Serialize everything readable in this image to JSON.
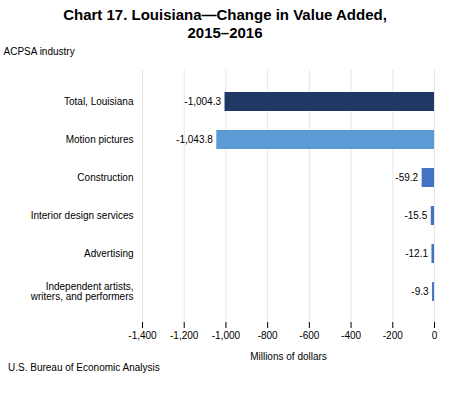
{
  "chart_data": {
    "type": "bar",
    "orientation": "horizontal",
    "title": "Chart 17. Louisiana—Change in Value Added,\n2015–2016",
    "xlabel": "Millions of dollars",
    "ylabel": "ACPSA industry",
    "footnote": "U.S. Bureau of Economic Analysis",
    "categories": [
      "Independent artists,\nwriters, and performers",
      "Advertising",
      "Interior design services",
      "Construction",
      "Motion pictures",
      "Total, Louisiana"
    ],
    "values": [
      -9.3,
      -12.1,
      -15.5,
      -59.2,
      -1043.8,
      -1004.3
    ],
    "value_labels": [
      "-9.3",
      "-12.1",
      "-15.5",
      "-59.2",
      "-1,043.8",
      "-1,004.3"
    ],
    "colors": [
      "#4472c4",
      "#4472c4",
      "#4472c4",
      "#4472c4",
      "#5b9bd5",
      "#1f3864"
    ],
    "data_labels": true,
    "xlim": [
      -1400,
      0
    ],
    "xticks": [
      {
        "value": -1400,
        "label": "-1,400"
      },
      {
        "value": -1200,
        "label": "-1,200"
      },
      {
        "value": -1000,
        "label": "-1,000"
      },
      {
        "value": -800,
        "label": "-800"
      },
      {
        "value": -600,
        "label": "-600"
      },
      {
        "value": -400,
        "label": "-400"
      },
      {
        "value": -200,
        "label": "-200"
      },
      0
    ],
    "grid": true
  }
}
